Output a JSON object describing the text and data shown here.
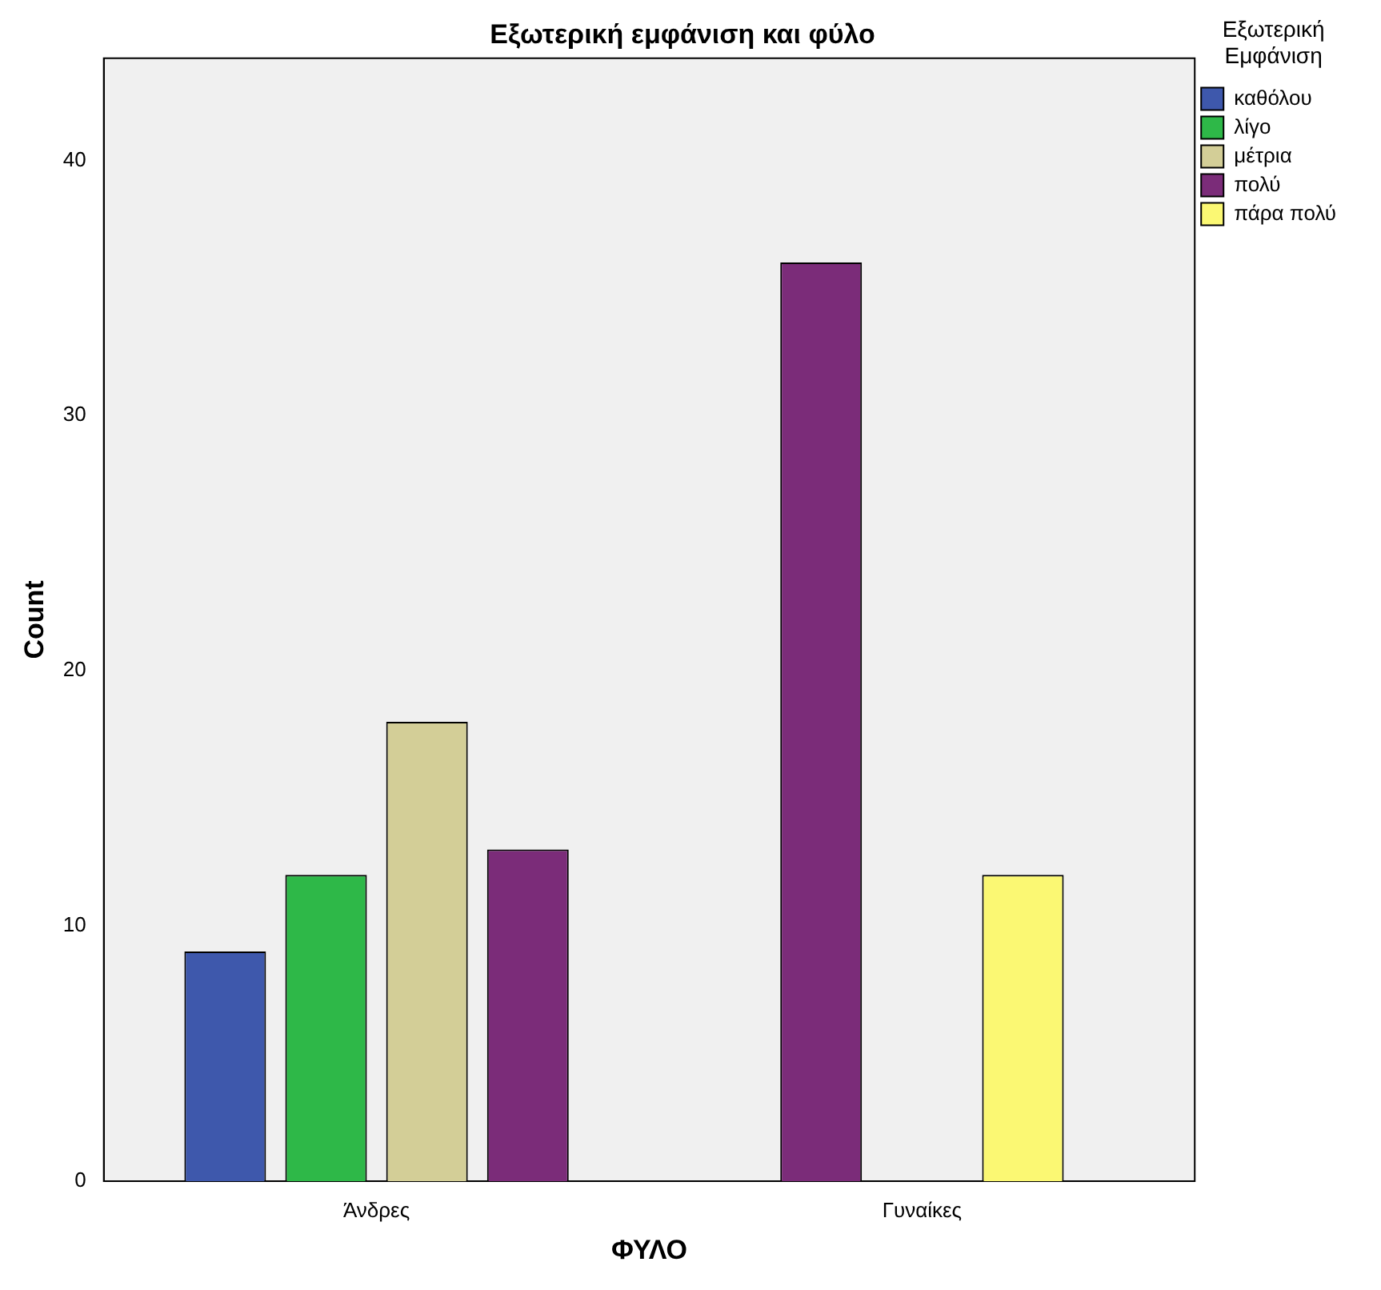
{
  "chart_data": {
    "type": "bar",
    "title": "Εξωτερική εμφάνιση και φύλο",
    "xlabel": "ΦΥΛΟ",
    "ylabel": "Count",
    "legend_title": "Εξωτερική\nΕμφάνιση",
    "categories": [
      "Άνδρες",
      "Γυναίκες"
    ],
    "series": [
      {
        "name": "καθόλου",
        "color": "#3e58ac",
        "values": [
          9,
          null
        ]
      },
      {
        "name": "λίγο",
        "color": "#2eb848",
        "values": [
          12,
          null
        ]
      },
      {
        "name": "μέτρια",
        "color": "#d3ce97",
        "values": [
          18,
          null
        ]
      },
      {
        "name": "πολύ",
        "color": "#7b2c79",
        "values": [
          13,
          36
        ]
      },
      {
        "name": "πάρα πολύ",
        "color": "#fbf873",
        "values": [
          null,
          12
        ]
      }
    ],
    "ylim": [
      0,
      44
    ],
    "yticks": [
      0,
      10,
      20,
      30,
      40
    ],
    "legend": "right"
  }
}
